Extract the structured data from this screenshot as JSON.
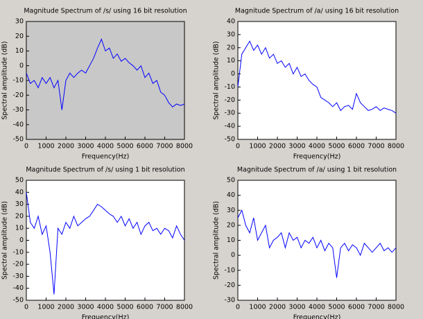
{
  "chart_data": [
    {
      "type": "line",
      "title": "Magnitude Spectrum of /s/ using 16 bit resolution",
      "x_label": "Frequency(Hz)",
      "y_label": "Spectral amplitude (dB)",
      "color": "#0000ff",
      "background": "#c8c8c8",
      "grid": false,
      "x": [
        0,
        200,
        400,
        600,
        800,
        1000,
        1200,
        1400,
        1600,
        1800,
        2000,
        2200,
        2400,
        2600,
        2800,
        3000,
        3200,
        3400,
        3600,
        3800,
        4000,
        4200,
        4400,
        4600,
        4800,
        5000,
        5200,
        5400,
        5600,
        5800,
        6000,
        6200,
        6400,
        6600,
        6800,
        7000,
        7200,
        7400,
        7600,
        7800,
        8000
      ],
      "values": [
        -5,
        -12,
        -10,
        -15,
        -8,
        -12,
        -8,
        -15,
        -10,
        -30,
        -10,
        -5,
        -8,
        -5,
        -3,
        -5,
        0,
        5,
        12,
        18,
        10,
        12,
        5,
        8,
        3,
        5,
        2,
        0,
        -3,
        0,
        -8,
        -5,
        -12,
        -10,
        -18,
        -20,
        -25,
        -28,
        -26,
        -27,
        -26
      ],
      "xlim": [
        0,
        8000
      ],
      "xticks": [
        0,
        1000,
        2000,
        3000,
        4000,
        5000,
        6000,
        7000,
        8000
      ],
      "ylim": [
        -50,
        30
      ],
      "yticks": [
        -50,
        -40,
        -30,
        -20,
        -10,
        0,
        10,
        20,
        30
      ]
    },
    {
      "type": "line",
      "title": "Magnitude Spectrum of /a/ using 16 bit resolution",
      "x_label": "Frequency(Hz)",
      "y_label": "Spectral amplitude (dB)",
      "color": "#0000ff",
      "background": "#ffffff",
      "grid": false,
      "x": [
        0,
        200,
        400,
        600,
        800,
        1000,
        1200,
        1400,
        1600,
        1800,
        2000,
        2200,
        2400,
        2600,
        2800,
        3000,
        3200,
        3400,
        3600,
        3800,
        4000,
        4200,
        4400,
        4600,
        4800,
        5000,
        5200,
        5400,
        5600,
        5800,
        6000,
        6200,
        6400,
        6600,
        6800,
        7000,
        7200,
        7400,
        7600,
        7800,
        8000
      ],
      "values": [
        -10,
        15,
        20,
        25,
        18,
        22,
        15,
        20,
        12,
        15,
        8,
        10,
        5,
        8,
        0,
        5,
        -2,
        0,
        -5,
        -8,
        -10,
        -18,
        -20,
        -22,
        -25,
        -22,
        -28,
        -25,
        -24,
        -27,
        -15,
        -22,
        -25,
        -28,
        -27,
        -25,
        -28,
        -26,
        -27,
        -28,
        -30
      ],
      "xlim": [
        0,
        8000
      ],
      "xticks": [
        0,
        1000,
        2000,
        3000,
        4000,
        5000,
        6000,
        7000,
        8000
      ],
      "ylim": [
        -50,
        40
      ],
      "yticks": [
        -50,
        -40,
        -30,
        -20,
        -10,
        0,
        10,
        20,
        30,
        40
      ]
    },
    {
      "type": "line",
      "title": "Magnitude Spectrum of /s/ using 1 bit resolution",
      "x_label": "Frequency(Hz)",
      "y_label": "Spectral amplitude (dB)",
      "color": "#0000ff",
      "background": "#ffffff",
      "grid": false,
      "x": [
        0,
        200,
        400,
        600,
        800,
        1000,
        1200,
        1400,
        1600,
        1800,
        2000,
        2200,
        2400,
        2600,
        2800,
        3000,
        3200,
        3400,
        3600,
        3800,
        4000,
        4200,
        4400,
        4600,
        4800,
        5000,
        5200,
        5400,
        5600,
        5800,
        6000,
        6200,
        6400,
        6600,
        6800,
        7000,
        7200,
        7400,
        7600,
        7800,
        8000
      ],
      "values": [
        40,
        15,
        10,
        20,
        5,
        12,
        -10,
        -45,
        10,
        5,
        15,
        10,
        20,
        12,
        15,
        18,
        20,
        25,
        30,
        28,
        25,
        22,
        20,
        15,
        20,
        12,
        18,
        10,
        15,
        5,
        12,
        15,
        8,
        10,
        5,
        10,
        8,
        2,
        12,
        5,
        0
      ],
      "xlim": [
        0,
        8000
      ],
      "xticks": [
        0,
        1000,
        2000,
        3000,
        4000,
        5000,
        6000,
        7000,
        8000
      ],
      "ylim": [
        -50,
        50
      ],
      "yticks": [
        -50,
        -40,
        -30,
        -20,
        -10,
        0,
        10,
        20,
        30,
        40,
        50
      ]
    },
    {
      "type": "line",
      "title": "Magnitude Spectrum of /a/ using 1 bit resolution",
      "x_label": "Frequency(Hz)",
      "y_label": "Spectral amplitude (dB)",
      "color": "#0000ff",
      "background": "#ffffff",
      "grid": false,
      "x": [
        0,
        200,
        400,
        600,
        800,
        1000,
        1200,
        1400,
        1600,
        1800,
        2000,
        2200,
        2400,
        2600,
        2800,
        3000,
        3200,
        3400,
        3600,
        3800,
        4000,
        4200,
        4400,
        4600,
        4800,
        5000,
        5200,
        5400,
        5600,
        5800,
        6000,
        6200,
        6400,
        6600,
        6800,
        7000,
        7200,
        7400,
        7600,
        7800,
        8000
      ],
      "values": [
        25,
        30,
        20,
        15,
        25,
        10,
        15,
        20,
        5,
        10,
        12,
        15,
        5,
        15,
        10,
        12,
        5,
        10,
        8,
        12,
        5,
        10,
        3,
        8,
        5,
        -15,
        5,
        8,
        3,
        7,
        5,
        0,
        8,
        5,
        2,
        5,
        8,
        3,
        5,
        2,
        5
      ],
      "xlim": [
        0,
        8000
      ],
      "xticks": [
        0,
        1000,
        2000,
        3000,
        4000,
        5000,
        6000,
        7000,
        8000
      ],
      "ylim": [
        -30,
        50
      ],
      "yticks": [
        -30,
        -20,
        -10,
        0,
        10,
        20,
        30,
        40,
        50
      ]
    }
  ]
}
